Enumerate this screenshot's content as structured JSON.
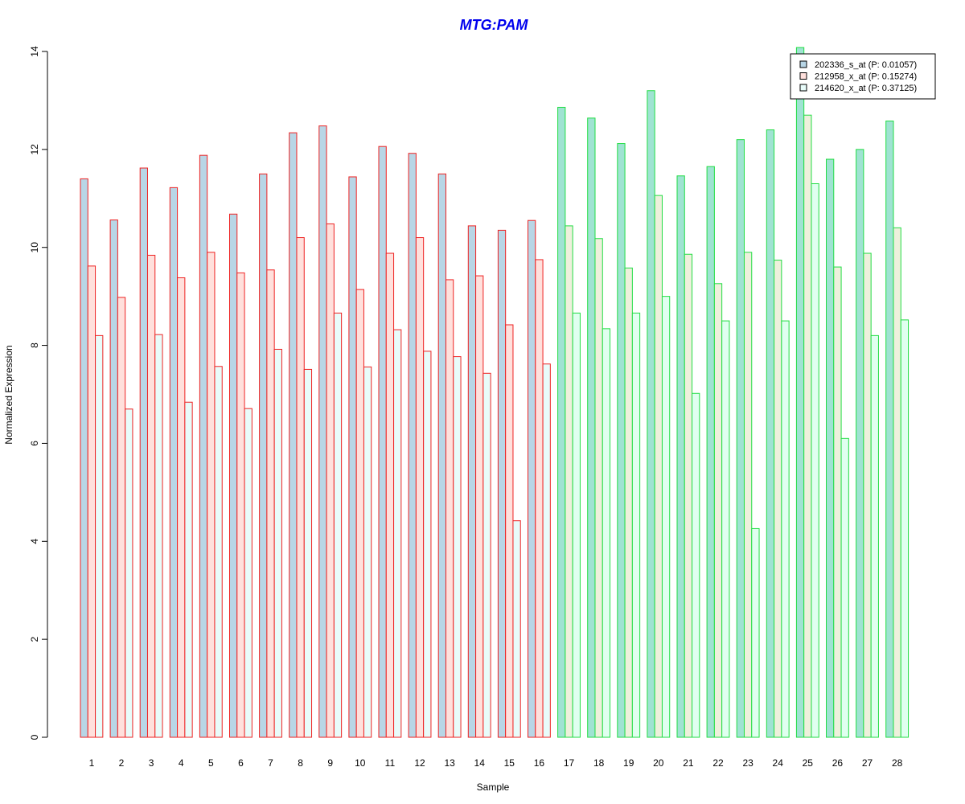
{
  "chart_data": {
    "type": "bar",
    "title": "MTG:PAM",
    "xlabel": "Sample",
    "ylabel": "Normalized Expression",
    "ylim": [
      0,
      14
    ],
    "yticks": [
      "0",
      "2",
      "4",
      "6",
      "8",
      "10",
      "12",
      "14"
    ],
    "categories": [
      "1",
      "2",
      "3",
      "4",
      "5",
      "6",
      "7",
      "8",
      "9",
      "10",
      "11",
      "12",
      "13",
      "14",
      "15",
      "16",
      "17",
      "18",
      "19",
      "20",
      "21",
      "22",
      "23",
      "24",
      "25",
      "26",
      "27",
      "28"
    ],
    "groups": [
      {
        "samples": [
          1,
          16
        ],
        "border_color": "#EE2222"
      },
      {
        "samples": [
          17,
          28
        ],
        "border_color": "#22DD44"
      }
    ],
    "series": [
      {
        "name": "202336_s_at (P: 0.01057)",
        "fill_group1": "#B8D6E6",
        "fill_group2": "#9FE3D2",
        "values": [
          11.4,
          10.56,
          11.62,
          11.22,
          11.88,
          10.68,
          11.5,
          12.34,
          12.48,
          11.44,
          12.06,
          11.92,
          11.5,
          10.44,
          10.35,
          10.55,
          12.86,
          12.64,
          12.12,
          13.2,
          11.46,
          11.65,
          12.2,
          12.4,
          14.08,
          11.8,
          12.0,
          12.58
        ]
      },
      {
        "name": "212958_x_at (P: 0.15274)",
        "fill_group1": "#FFE0DC",
        "fill_group2": "#EEF0DC",
        "values": [
          9.62,
          8.98,
          9.84,
          9.38,
          9.9,
          9.48,
          9.54,
          10.2,
          10.48,
          9.14,
          9.88,
          10.2,
          9.34,
          9.42,
          8.42,
          9.75,
          10.44,
          10.18,
          9.58,
          11.06,
          9.86,
          9.26,
          9.9,
          9.74,
          12.7,
          9.6,
          9.88,
          10.4
        ]
      },
      {
        "name": "214620_x_at (P: 0.37125)",
        "fill_group1": "#E8FCFA",
        "fill_group2": "#E0FFF0",
        "values": [
          8.2,
          6.7,
          8.22,
          6.84,
          7.57,
          6.71,
          7.92,
          7.51,
          8.66,
          7.56,
          8.32,
          7.88,
          7.77,
          7.43,
          4.42,
          7.62,
          8.66,
          8.34,
          8.66,
          9.0,
          7.02,
          8.5,
          4.26,
          8.5,
          11.3,
          6.1,
          8.2,
          8.52
        ]
      }
    ],
    "legend": {
      "position": "top-right",
      "swatches": [
        "#B8D6E6",
        "#FFE0DC",
        "#E8FCFA"
      ]
    }
  }
}
